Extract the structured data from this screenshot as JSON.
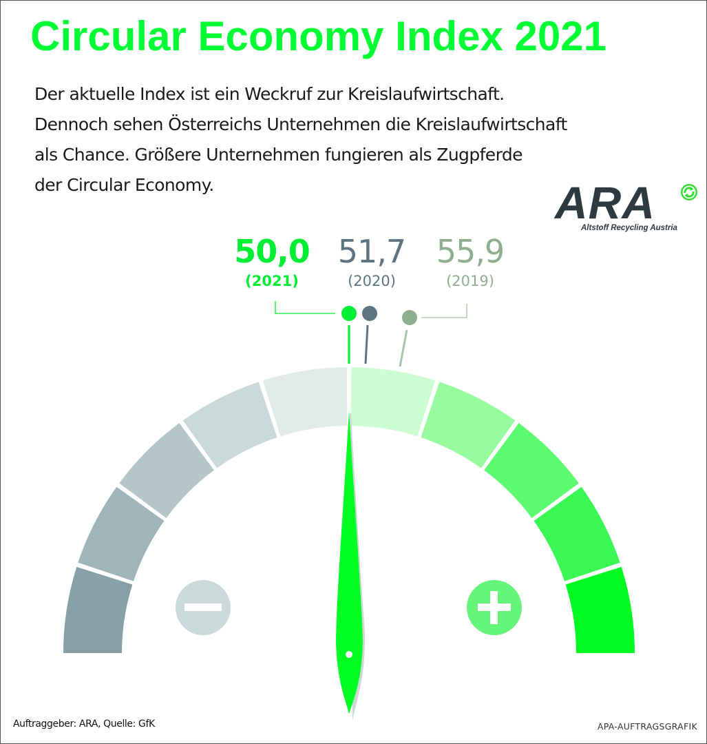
{
  "header": {
    "title": "Circular Economy Index 2021",
    "description": [
      "Der aktuelle Index ist ein Weckruf zur Kreislaufwirtschaft.",
      "Dennoch sehen Österreichs Unternehmen die Kreislaufwirtschaft",
      "als Chance. Größere Unternehmen fungieren als Zugpferde",
      "der Circular Economy."
    ]
  },
  "logo": {
    "name": "ARA",
    "subtitle": "Altstoff Recycling Austria",
    "icon": "recycling-arrows-icon",
    "color": "#2e3a40",
    "icon_color": "#33dd33"
  },
  "values": [
    {
      "value": "50,0",
      "year": "(2021)",
      "color": "#00ee33"
    },
    {
      "value": "51,7",
      "year": "(2020)",
      "color": "#5f7482"
    },
    {
      "value": "55,9",
      "year": "(2019)",
      "color": "#8fae8f"
    }
  ],
  "gauge": {
    "segments_left": [
      "#87a0a6",
      "#9fb5b9",
      "#b5c6c8",
      "#cbd8d9",
      "#e3eaea"
    ],
    "segments_right": [
      "#ccfdd3",
      "#96fc9e",
      "#5dfb6f",
      "#3af854",
      "#00fa22"
    ],
    "minus_icon": "minus-circle-icon",
    "plus_icon": "plus-circle-icon",
    "minus_color": "#ccd9da",
    "plus_color": "#66f57b",
    "needle_color": "#00ff22"
  },
  "footer": {
    "left": "Auftraggeber: ARA, Quelle: GfK",
    "right": "APA-AUFTRAGSGRAFIK"
  },
  "chart_data": {
    "type": "gauge",
    "title": "Circular Economy Index 2021",
    "range": [
      0,
      100
    ],
    "midpoint": 50,
    "segments": 10,
    "series": [
      {
        "name": "2021",
        "value": 50.0
      },
      {
        "name": "2020",
        "value": 51.7
      },
      {
        "name": "2019",
        "value": 55.9
      }
    ],
    "annotations": [
      "−",
      "+"
    ],
    "source": "Auftraggeber: ARA, Quelle: GfK"
  }
}
